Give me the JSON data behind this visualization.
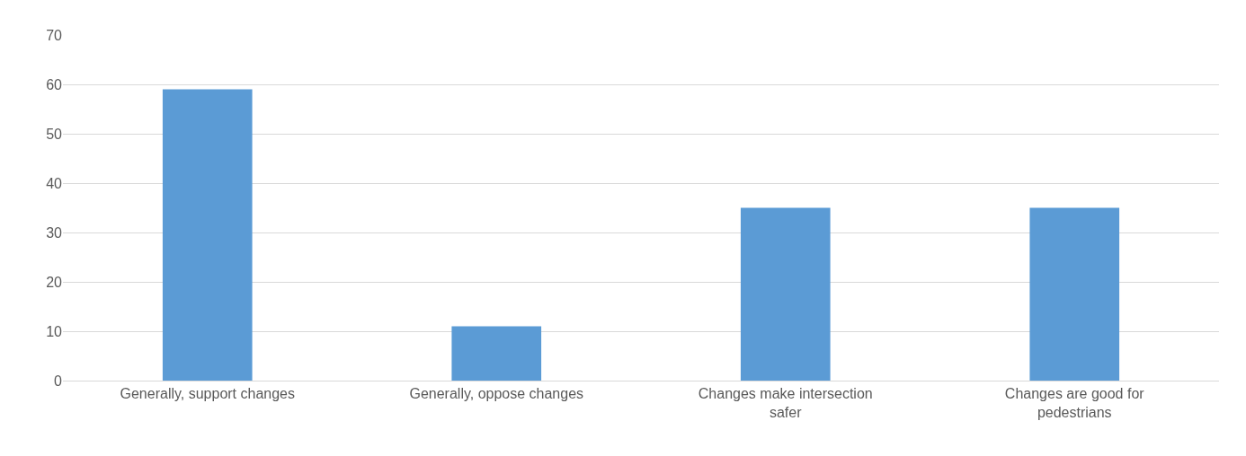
{
  "chart_data": {
    "type": "bar",
    "categories": [
      "Generally, support changes",
      "Generally, oppose changes",
      "Changes make intersection safer",
      "Changes are good for pedestrians"
    ],
    "values": [
      59,
      11,
      35,
      35
    ],
    "color": "#5b9bd5",
    "ylim": [
      0,
      70
    ],
    "yticks": [
      0,
      10,
      20,
      30,
      40,
      50,
      60,
      70
    ],
    "grid": "y"
  }
}
